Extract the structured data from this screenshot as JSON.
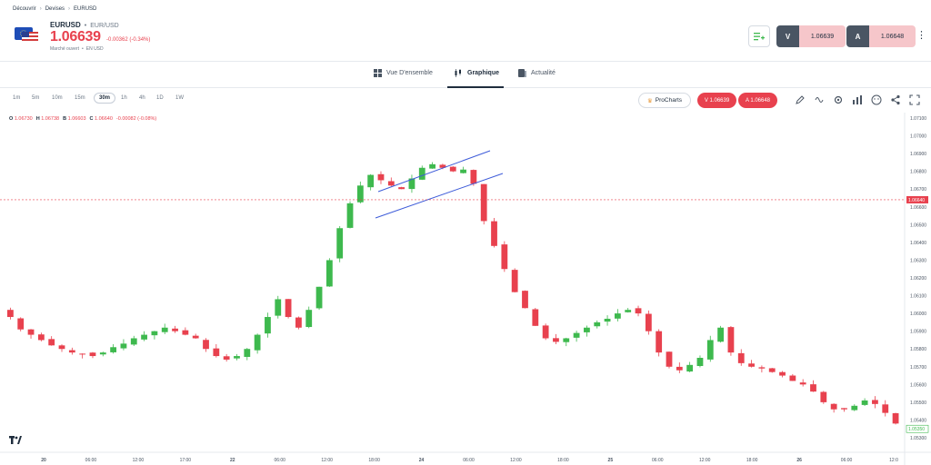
{
  "breadcrumb": [
    "Découvrir",
    "Devises",
    "EURUSD"
  ],
  "instrument": {
    "symbol": "EURUSD",
    "pair": "EUR/USD",
    "price": "1.06639",
    "change": "-0.00362 (-0.34%)",
    "market_status": "Marché ouvert",
    "currency": "EN USD",
    "flag_icon": "eu-us-flag-icon"
  },
  "trade": {
    "sell_label": "V",
    "sell_value": "1.06639",
    "buy_label": "A",
    "buy_value": "1.06648"
  },
  "tabs": [
    {
      "label": "Vue D'ensemble",
      "icon": "grid-icon"
    },
    {
      "label": "Graphique",
      "icon": "candles-icon"
    },
    {
      "label": "Actualité",
      "icon": "news-icon"
    }
  ],
  "active_tab": "Graphique",
  "timeframes": [
    "1m",
    "5m",
    "10m",
    "15m",
    "30m",
    "1h",
    "4h",
    "1D",
    "1W"
  ],
  "selected_timeframe": "30m",
  "prochart_label": "ProCharts",
  "pills": {
    "sell": "V 1.06639",
    "buy": "A 1.06648"
  },
  "ohlc": {
    "o_label": "O",
    "o": "1.06730",
    "h_label": "H",
    "h": "1.06738",
    "b_label": "B",
    "b": "1.06603",
    "c_label": "C",
    "c": "1.06640",
    "chg": "-0.00082 (-0.08%)"
  },
  "colors": {
    "up": "#3eb94e",
    "down": "#e8414e",
    "channel": "#3d5bd9",
    "accent": "#e8414e"
  },
  "chart_data": {
    "type": "candlestick",
    "ylim": [
      1.053,
      1.071
    ],
    "y_ticks": [
      "1.07100",
      "1.07000",
      "1.06900",
      "1.06800",
      "1.06700",
      "1.06600",
      "1.06500",
      "1.06400",
      "1.06300",
      "1.06200",
      "1.06100",
      "1.06000",
      "1.05900",
      "1.05800",
      "1.05700",
      "1.05600",
      "1.05500",
      "1.05400",
      "1.05300"
    ],
    "x_ticks": [
      "20",
      "06:00",
      "12:00",
      "17:00",
      "22",
      "06:00",
      "12:00",
      "18:00",
      "24",
      "06:00",
      "12:00",
      "18:00",
      "25",
      "06:00",
      "12:00",
      "18:00",
      "26",
      "06:00",
      "12:0"
    ],
    "current_price_label": "1.06640",
    "last_price_label": "1.05350",
    "close_path": [
      1.0598,
      1.0591,
      1.0588,
      1.0585,
      1.0582,
      1.058,
      1.0578,
      1.0577,
      1.0576,
      1.0578,
      1.0581,
      1.0583,
      1.0586,
      1.0588,
      1.059,
      1.0592,
      1.059,
      1.0588,
      1.0586,
      1.058,
      1.0576,
      1.0574,
      1.0576,
      1.058,
      1.0588,
      1.0598,
      1.0608,
      1.0598,
      1.0592,
      1.0602,
      1.0615,
      1.063,
      1.0648,
      1.0662,
      1.0672,
      1.0678,
      1.0675,
      1.0672,
      1.067,
      1.0676,
      1.0682,
      1.0684,
      1.0682,
      1.068,
      1.0681,
      1.0673,
      1.0652,
      1.0638,
      1.0625,
      1.0612,
      1.0603,
      1.0593,
      1.0586,
      1.0584,
      1.0586,
      1.0589,
      1.0592,
      1.0595,
      1.0597,
      1.06,
      1.0602,
      1.06,
      1.059,
      1.0578,
      1.057,
      1.0568,
      1.0571,
      1.0575,
      1.0585,
      1.0592,
      1.0578,
      1.0572,
      1.057,
      1.0569,
      1.0567,
      1.0565,
      1.0562,
      1.056,
      1.0556,
      1.055,
      1.0546,
      1.0546,
      1.0548,
      1.0551,
      1.0549,
      1.0544,
      1.0538
    ]
  }
}
